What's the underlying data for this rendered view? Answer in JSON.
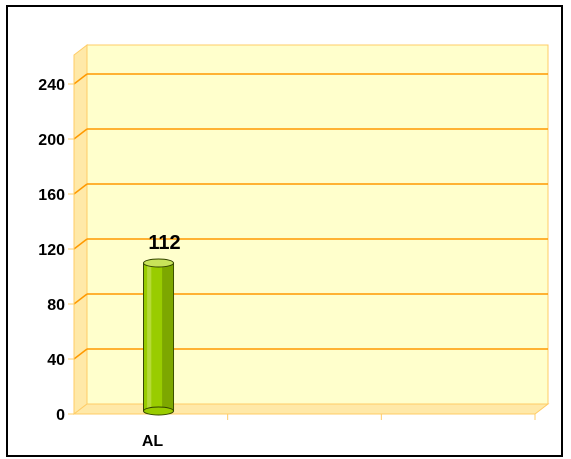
{
  "chart_data": {
    "type": "bar",
    "categories": [
      "AL"
    ],
    "values": [
      112
    ],
    "ylim": [
      0,
      240
    ],
    "yticks": [
      0,
      40,
      80,
      120,
      160,
      200,
      240
    ],
    "category_slots": 3,
    "grid": true,
    "style": "3d-cylinder",
    "colors": {
      "plot_back": "#ffffcc",
      "plot_side": "#ffe9a8",
      "gridline": "#ff9900",
      "wall_edge": "#ffcc66",
      "bar": "#99cc00",
      "bar_dark": "#5a7a00",
      "bar_light": "#c8e35a"
    }
  }
}
